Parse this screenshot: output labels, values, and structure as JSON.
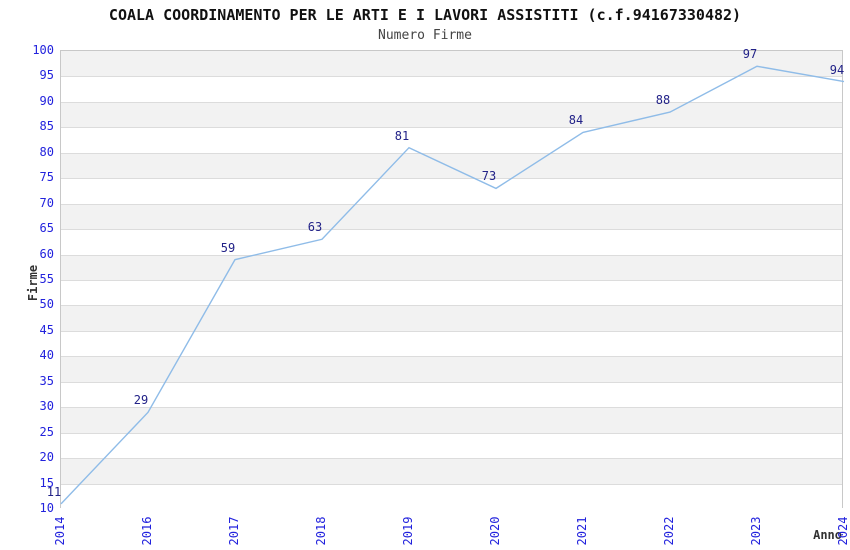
{
  "header": {
    "title": "COALA COORDINAMENTO PER LE ARTI E I LAVORI ASSISTITI (c.f.94167330482)",
    "subtitle": "Numero Firme"
  },
  "chart_data": {
    "type": "line",
    "title": "COALA COORDINAMENTO PER LE ARTI E I LAVORI ASSISTITI (c.f.94167330482)",
    "subtitle": "Numero Firme",
    "categories": [
      "2014",
      "2016",
      "2017",
      "2018",
      "2019",
      "2020",
      "2021",
      "2022",
      "2023",
      "2024"
    ],
    "series": [
      {
        "name": "Numero Firme",
        "values": [
          11,
          29,
          59,
          63,
          81,
          73,
          84,
          88,
          97,
          94
        ]
      }
    ],
    "xlabel": "Anno",
    "ylabel": "Firme",
    "ylim": [
      10,
      100
    ],
    "ytick_step": 5,
    "grid": true,
    "legend": false,
    "band_pattern": "alternating-5-unit-rows-starting-gray-at-top",
    "colors": {
      "line": "#8fbce8",
      "data_label": "#222288",
      "tick_label": "#2222dd",
      "axis_title": "#333333",
      "band_gray": "#f2f2f2",
      "band_white": "#ffffff",
      "grid_line": "#dcdcdc",
      "plot_border": "#c8c8c8",
      "title": "#111111",
      "subtitle": "#444444"
    }
  }
}
